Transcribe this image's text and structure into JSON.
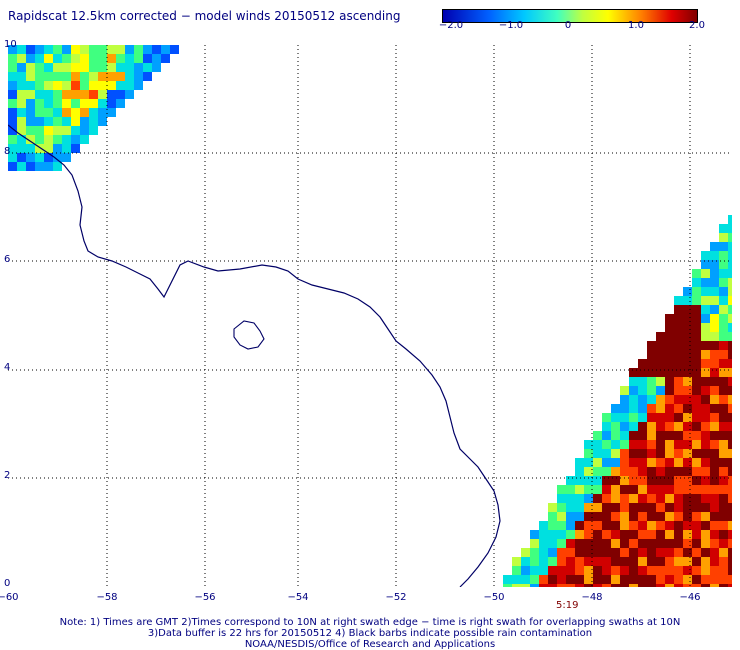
{
  "title": "Rapidscat 12.5km corrected − model winds 20150512 ascending",
  "colorbar": {
    "ticks": [
      "−2.0",
      "−1.0",
      "0",
      "1.0",
      "2.0"
    ],
    "colors": [
      "#0000c8",
      "#0050ff",
      "#00a0ff",
      "#00e0e0",
      "#40ff80",
      "#c0ff40",
      "#ffff00",
      "#ffa000",
      "#ff4000",
      "#d00000",
      "#800000"
    ]
  },
  "axes": {
    "x_ticks": [
      "−60",
      "−58",
      "−56",
      "−54",
      "−52",
      "−50",
      "−48",
      "−46"
    ],
    "y_ticks": [
      "10",
      "8",
      "6",
      "4",
      "2",
      "0"
    ],
    "lon_range": [
      -60,
      -45.5
    ],
    "lat_range": [
      0,
      10
    ]
  },
  "time_label": "5:19",
  "notes": [
    "Note: 1) Times are GMT 2)Times correspond to 10N at right swath edge − time is right swath for overlapping swaths at 10N",
    "3)Data buffer is 22 hrs for 20150512 4) Black barbs indicate possible rain contamination",
    "NOAA/NESDIS/Office of Research and Applications"
  ]
}
